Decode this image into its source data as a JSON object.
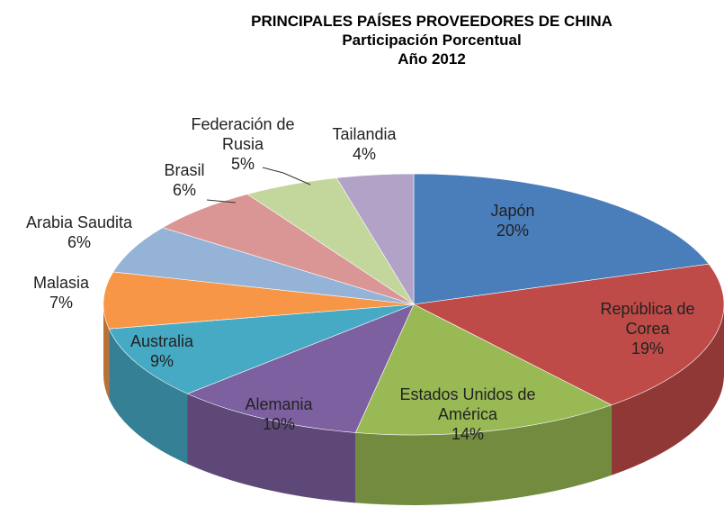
{
  "chart_data": {
    "type": "pie3d",
    "title": "PRINCIPALES PAÍSES PROVEEDORES DE CHINA",
    "subtitle": [
      "Participación Porcentual",
      "Año 2012"
    ],
    "categories": [
      "Japón",
      "República de Corea",
      "Estados Unidos de América",
      "Alemania",
      "Australia",
      "Malasia",
      "Arabia Saudita",
      "Brasil",
      "Federación de Rusia",
      "Tailandia"
    ],
    "values": [
      20,
      19,
      14,
      10,
      9,
      7,
      6,
      6,
      5,
      4
    ],
    "value_labels": [
      "20%",
      "19%",
      "14%",
      "10%",
      "9%",
      "7%",
      "6%",
      "6%",
      "5%",
      "4%"
    ],
    "colors": [
      "#4a7ebb",
      "#be4b48",
      "#98b954",
      "#7d60a0",
      "#46aac5",
      "#f79646",
      "#95b3d7",
      "#d99694",
      "#c3d69b",
      "#b3a2c7"
    ]
  }
}
